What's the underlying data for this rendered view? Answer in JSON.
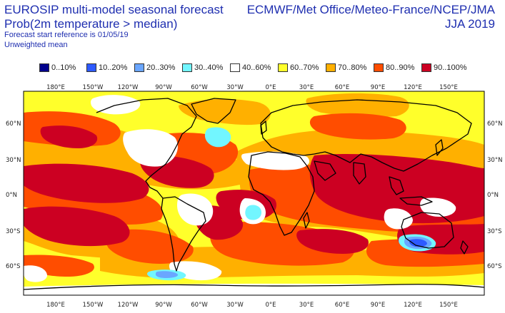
{
  "header": {
    "title_line1": "EUROSIP multi-model seasonal forecast",
    "title_line2": "Prob(2m temperature > median)",
    "forecast_start": "Forecast start reference is 01/05/19",
    "weighting": "Unweighted mean",
    "credit": "ECMWF/Met Office/Meteo-France/NCEP/JMA",
    "season": "JJA 2019"
  },
  "legend": [
    {
      "label": "0..10%",
      "color": "#00008c"
    },
    {
      "label": "10..20%",
      "color": "#2d5aff"
    },
    {
      "label": "20..30%",
      "color": "#6aa6ff"
    },
    {
      "label": "30..40%",
      "color": "#72f6ff"
    },
    {
      "label": "40..60%",
      "color": "#ffffff"
    },
    {
      "label": "60..70%",
      "color": "#ffff2b"
    },
    {
      "label": "70..80%",
      "color": "#ffb000"
    },
    {
      "label": "80..90%",
      "color": "#ff4d00"
    },
    {
      "label": "90..100%",
      "color": "#cc0022"
    }
  ],
  "map": {
    "lon_labels": [
      "180°E",
      "150°W",
      "120°W",
      "90°W",
      "60°W",
      "30°W",
      "0°E",
      "30°E",
      "60°E",
      "90°E",
      "120°E",
      "150°E"
    ],
    "lat_labels_left": [
      "60°N",
      "30°N",
      "0°N",
      "30°S",
      "60°S"
    ],
    "lat_labels_right": [
      "60°N",
      "30°N",
      "0°N",
      "30°S",
      "60°S"
    ],
    "lon_range": [
      -195,
      180
    ],
    "lat_range": [
      -85,
      85
    ]
  }
}
